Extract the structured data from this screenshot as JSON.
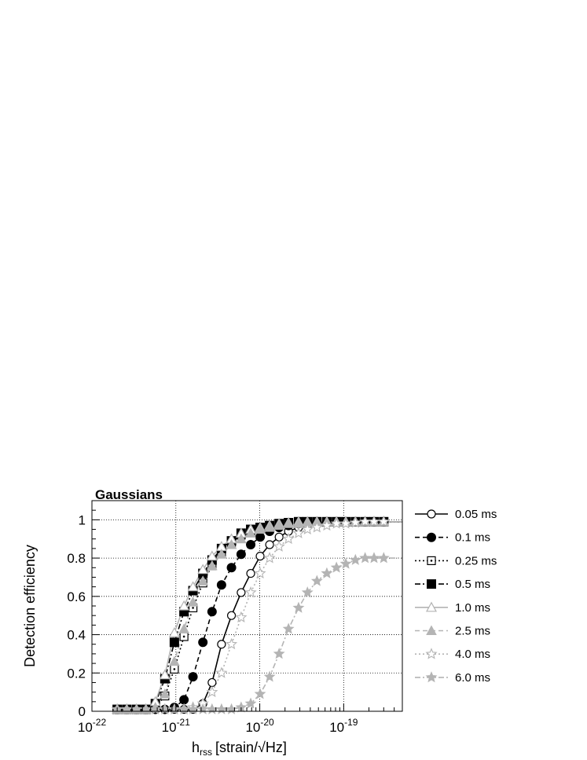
{
  "chart_data": {
    "type": "line",
    "title": "Gaussians",
    "xlabel_main": "h",
    "xlabel_sub": "rss",
    "xlabel_unit": "[strain/√Hz]",
    "ylabel": "Detection efficiency",
    "x_scale": "log",
    "xlim": [
      1e-22,
      5e-19
    ],
    "ylim": [
      0,
      1.1
    ],
    "x_ticks": [
      {
        "value": 1e-22,
        "base": "10",
        "exp": "-22"
      },
      {
        "value": 1e-21,
        "base": "10",
        "exp": "-21"
      },
      {
        "value": 1e-20,
        "base": "10",
        "exp": "-20"
      },
      {
        "value": 1e-19,
        "base": "10",
        "exp": "-19"
      }
    ],
    "y_ticks": [
      {
        "value": 0,
        "label": "0"
      },
      {
        "value": 0.2,
        "label": "0.2"
      },
      {
        "value": 0.4,
        "label": "0.4"
      },
      {
        "value": 0.6,
        "label": "0.6"
      },
      {
        "value": 0.8,
        "label": "0.8"
      },
      {
        "value": 1.0,
        "label": "1"
      }
    ],
    "grid": true,
    "legend_position": "right",
    "x": [
      2e-22,
      2.6e-22,
      3.4e-22,
      4.4e-22,
      5.7e-22,
      7.4e-22,
      9.6e-22,
      1.25e-21,
      1.6e-21,
      2.1e-21,
      2.7e-21,
      3.5e-21,
      4.6e-21,
      6e-21,
      7.8e-21,
      1.01e-20,
      1.31e-20,
      1.7e-20,
      2.2e-20,
      2.9e-20,
      3.7e-20,
      4.8e-20,
      6.3e-20,
      8.2e-20,
      1.06e-19,
      1.38e-19,
      1.8e-19,
      2.3e-19,
      3e-19
    ],
    "series": [
      {
        "name": "0.05 ms",
        "color": "#000000",
        "dash": "",
        "marker": "circle-open",
        "values": [
          0.01,
          0.01,
          0.01,
          0.01,
          0.01,
          0.01,
          0.01,
          0.01,
          0.01,
          0.04,
          0.15,
          0.35,
          0.5,
          0.62,
          0.72,
          0.81,
          0.87,
          0.91,
          0.94,
          0.96,
          0.97,
          0.98,
          0.985,
          0.99,
          0.99,
          0.99,
          0.99,
          0.99,
          0.99
        ]
      },
      {
        "name": "0.1 ms",
        "color": "#000000",
        "dash": "6,4",
        "marker": "circle-filled",
        "values": [
          0.01,
          0.01,
          0.01,
          0.01,
          0.01,
          0.01,
          0.02,
          0.06,
          0.18,
          0.36,
          0.52,
          0.66,
          0.75,
          0.82,
          0.87,
          0.91,
          0.94,
          0.96,
          0.97,
          0.98,
          0.985,
          0.99,
          0.99,
          0.99,
          0.99,
          0.99,
          0.99,
          0.99,
          0.99
        ]
      },
      {
        "name": "0.25 ms",
        "color": "#000000",
        "dash": "2,3",
        "marker": "square-open-dot",
        "values": [
          0.01,
          0.01,
          0.01,
          0.01,
          0.02,
          0.08,
          0.22,
          0.39,
          0.54,
          0.67,
          0.76,
          0.83,
          0.88,
          0.92,
          0.94,
          0.96,
          0.97,
          0.98,
          0.985,
          0.99,
          0.99,
          0.99,
          0.99,
          0.99,
          0.99,
          0.99,
          0.99,
          0.99,
          0.99
        ]
      },
      {
        "name": "0.5 ms",
        "color": "#000000",
        "dash": "7,3,2,3",
        "marker": "square-filled",
        "values": [
          0.01,
          0.01,
          0.01,
          0.01,
          0.04,
          0.17,
          0.36,
          0.52,
          0.63,
          0.72,
          0.79,
          0.85,
          0.89,
          0.93,
          0.95,
          0.96,
          0.97,
          0.98,
          0.985,
          0.99,
          0.99,
          0.99,
          0.99,
          0.99,
          0.99,
          0.99,
          0.99,
          0.99,
          0.99
        ]
      },
      {
        "name": "1.0 ms",
        "color": "#b4b4b4",
        "dash": "",
        "marker": "triangle-open",
        "values": [
          0.01,
          0.01,
          0.01,
          0.01,
          0.05,
          0.19,
          0.41,
          0.55,
          0.65,
          0.74,
          0.81,
          0.86,
          0.9,
          0.93,
          0.95,
          0.96,
          0.97,
          0.98,
          0.985,
          0.99,
          0.99,
          0.99,
          0.99,
          0.99,
          0.99,
          0.99,
          0.99,
          0.99,
          0.99
        ]
      },
      {
        "name": "2.5 ms",
        "color": "#b4b4b4",
        "dash": "6,4",
        "marker": "triangle-filled",
        "values": [
          0.01,
          0.01,
          0.01,
          0.01,
          0.02,
          0.09,
          0.26,
          0.43,
          0.57,
          0.68,
          0.76,
          0.82,
          0.87,
          0.9,
          0.93,
          0.95,
          0.96,
          0.97,
          0.98,
          0.98,
          0.985,
          0.99,
          0.99,
          0.99,
          0.99,
          0.99,
          0.99,
          0.99,
          0.99
        ]
      },
      {
        "name": "4.0 ms",
        "color": "#b4b4b4",
        "dash": "2,3",
        "marker": "star-open",
        "values": [
          0.01,
          0.01,
          0.01,
          0.01,
          0.01,
          0.01,
          0.01,
          0.01,
          0.02,
          0.04,
          0.1,
          0.2,
          0.35,
          0.49,
          0.62,
          0.72,
          0.8,
          0.86,
          0.9,
          0.93,
          0.95,
          0.96,
          0.97,
          0.98,
          0.98,
          0.985,
          0.99,
          0.99,
          0.99
        ]
      },
      {
        "name": "6.0 ms",
        "color": "#b4b4b4",
        "dash": "7,3,2,3",
        "marker": "star-filled",
        "values": [
          0.01,
          0.01,
          0.01,
          0.01,
          0.01,
          0.01,
          0.01,
          0.01,
          0.01,
          0.01,
          0.01,
          0.01,
          0.01,
          0.02,
          0.04,
          0.09,
          0.18,
          0.3,
          0.43,
          0.54,
          0.62,
          0.68,
          0.72,
          0.75,
          0.77,
          0.79,
          0.8,
          0.8,
          0.8
        ]
      }
    ]
  }
}
